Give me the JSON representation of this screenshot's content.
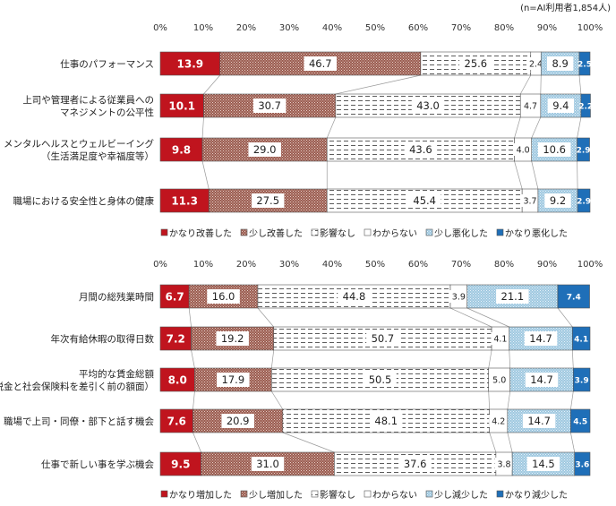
{
  "note": "(n=AI利用者1,854人)",
  "colors": {
    "c1": "#c0141e",
    "c2": "#9a5b4f",
    "c3": "#ffffff",
    "c4": "#ffffff",
    "c5": "#9fc8e0",
    "c6": "#1f6fb8"
  },
  "chart_data": [
    {
      "type": "bar",
      "orientation": "horizontal",
      "stacked": true,
      "percent_axis": true,
      "xlim": [
        0,
        100
      ],
      "ticks": [
        "0%",
        "10%",
        "20%",
        "30%",
        "40%",
        "50%",
        "60%",
        "70%",
        "80%",
        "90%",
        "100%"
      ],
      "categories": [
        [
          "仕事のパフォーマンス"
        ],
        [
          "上司や管理者による従業員への",
          "マネジメントの公平性"
        ],
        [
          "メンタルヘルスとウェルビーイング",
          "（生活満足度や幸福度等）"
        ],
        [
          "職場における安全性と身体の健康"
        ]
      ],
      "series": [
        {
          "name": "かなり改善した",
          "values": [
            13.9,
            10.1,
            9.8,
            11.3
          ]
        },
        {
          "name": "少し改善した",
          "values": [
            46.7,
            30.7,
            29.0,
            27.5
          ]
        },
        {
          "name": "影響なし",
          "values": [
            25.6,
            43.0,
            43.6,
            45.4
          ]
        },
        {
          "name": "わからない",
          "values": [
            2.4,
            4.7,
            4.0,
            3.7
          ]
        },
        {
          "name": "少し悪化した",
          "values": [
            8.9,
            9.4,
            10.6,
            9.2
          ]
        },
        {
          "name": "かなり悪化した",
          "values": [
            2.5,
            2.2,
            2.9,
            2.9
          ]
        }
      ]
    },
    {
      "type": "bar",
      "orientation": "horizontal",
      "stacked": true,
      "percent_axis": true,
      "xlim": [
        0,
        100
      ],
      "ticks": [
        "0%",
        "10%",
        "20%",
        "30%",
        "40%",
        "50%",
        "60%",
        "70%",
        "80%",
        "90%",
        "100%"
      ],
      "categories": [
        [
          "月間の総残業時間"
        ],
        [
          "年次有給休暇の取得日数"
        ],
        [
          "平均的な賃金総額",
          "（税金と社会保険料を差引く前の額面）"
        ],
        [
          "職場で上司・同僚・部下と話す機会"
        ],
        [
          "仕事で新しい事を学ぶ機会"
        ]
      ],
      "series": [
        {
          "name": "かなり増加した",
          "values": [
            6.7,
            7.2,
            8.0,
            7.6,
            9.5
          ]
        },
        {
          "name": "少し増加した",
          "values": [
            16.0,
            19.2,
            17.9,
            20.9,
            31.0
          ]
        },
        {
          "name": "影響なし",
          "values": [
            44.8,
            50.7,
            50.5,
            48.1,
            37.6
          ]
        },
        {
          "name": "わからない",
          "values": [
            3.9,
            4.1,
            5.0,
            4.2,
            3.8
          ]
        },
        {
          "name": "少し減少した",
          "values": [
            21.1,
            14.7,
            14.7,
            14.7,
            14.5
          ]
        },
        {
          "name": "かなり減少した",
          "values": [
            7.4,
            4.1,
            3.9,
            4.5,
            3.6
          ]
        }
      ]
    }
  ]
}
